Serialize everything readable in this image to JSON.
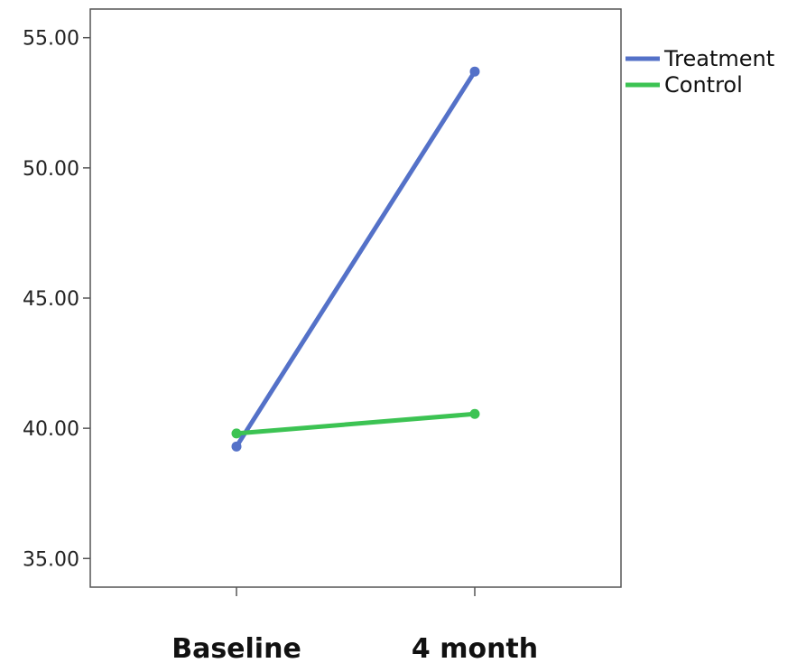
{
  "chart_data": {
    "type": "line",
    "categories": [
      "Baseline",
      "4 month"
    ],
    "series": [
      {
        "name": "Treatment",
        "values": [
          39.3,
          53.7
        ],
        "color": "#5471c8"
      },
      {
        "name": "Control",
        "values": [
          39.8,
          40.55
        ],
        "color": "#3cc353"
      }
    ],
    "ylim": [
      33.9,
      56.1
    ],
    "yticks": [
      35,
      40,
      45,
      50,
      55
    ],
    "ytick_labels": [
      "35.00",
      "40.00",
      "45.00",
      "50.00",
      "55.00"
    ],
    "title": "",
    "xlabel": "",
    "ylabel": "",
    "grid": false,
    "legend_position": "top-right"
  }
}
